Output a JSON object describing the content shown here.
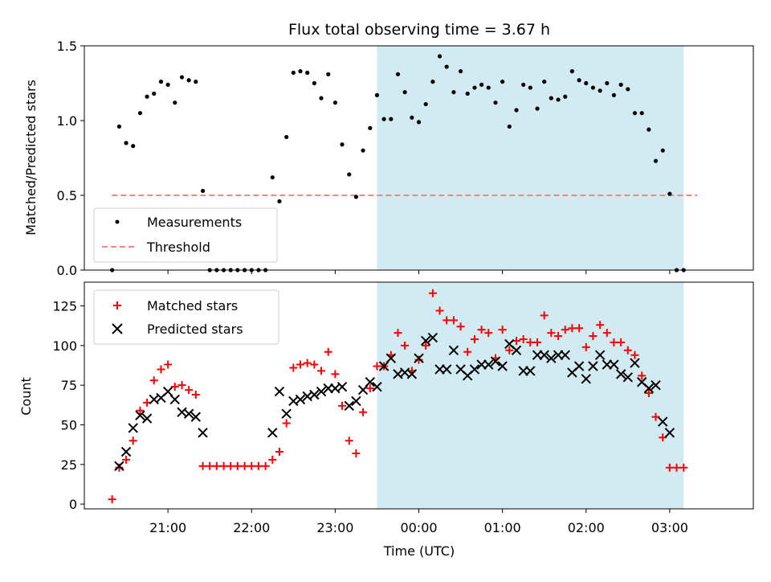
{
  "figure": {
    "title": "Flux total observing time = 3.67 h",
    "xlabel": "Time (UTC)",
    "x_tick_labels": [
      "21:00",
      "22:00",
      "23:00",
      "00:00",
      "01:00",
      "02:00",
      "03:00"
    ],
    "x_tick_hours": [
      21,
      22,
      23,
      24,
      25,
      26,
      27
    ],
    "xlim_hours": [
      20.0,
      28.0
    ],
    "highlight_hours": [
      23.5,
      27.167
    ],
    "highlight_color": "#add8e6"
  },
  "chart_data": [
    {
      "type": "scatter",
      "ylabel": "Matched/Predicted stars",
      "ylim": [
        0,
        1.5
      ],
      "y_ticks": [
        0.0,
        0.5,
        1.0,
        1.5
      ],
      "y_tick_labels": [
        "0.0",
        "0.5",
        "1.0",
        "1.5"
      ],
      "legend": {
        "placement": "lower-left",
        "entries": [
          "Measurements",
          "Threshold"
        ]
      },
      "threshold": {
        "name": "Threshold",
        "value": 0.5,
        "x_range_hours": [
          20.33,
          27.33
        ],
        "color": "#ff8080"
      },
      "series": [
        {
          "name": "Measurements",
          "color": "#000000",
          "points": [
            [
              20.333,
              0.0
            ],
            [
              20.417,
              0.96
            ],
            [
              20.5,
              0.85
            ],
            [
              20.583,
              0.83
            ],
            [
              20.667,
              1.05
            ],
            [
              20.75,
              1.16
            ],
            [
              20.833,
              1.18
            ],
            [
              20.917,
              1.26
            ],
            [
              21.0,
              1.24
            ],
            [
              21.083,
              1.12
            ],
            [
              21.167,
              1.29
            ],
            [
              21.25,
              1.27
            ],
            [
              21.333,
              1.26
            ],
            [
              21.417,
              0.53
            ],
            [
              21.5,
              0.0
            ],
            [
              21.583,
              0.0
            ],
            [
              21.667,
              0.0
            ],
            [
              21.75,
              0.0
            ],
            [
              21.833,
              0.0
            ],
            [
              21.917,
              0.0
            ],
            [
              22.0,
              0.0
            ],
            [
              22.083,
              0.0
            ],
            [
              22.167,
              0.0
            ],
            [
              22.25,
              0.62
            ],
            [
              22.333,
              0.46
            ],
            [
              22.417,
              0.89
            ],
            [
              22.5,
              1.32
            ],
            [
              22.583,
              1.33
            ],
            [
              22.667,
              1.32
            ],
            [
              22.75,
              1.25
            ],
            [
              22.833,
              1.15
            ],
            [
              22.917,
              1.31
            ],
            [
              23.0,
              1.12
            ],
            [
              23.083,
              0.84
            ],
            [
              23.167,
              0.64
            ],
            [
              23.25,
              0.49
            ],
            [
              23.333,
              0.8
            ],
            [
              23.417,
              0.95
            ],
            [
              23.5,
              1.17
            ],
            [
              23.583,
              1.01
            ],
            [
              23.667,
              1.01
            ],
            [
              23.75,
              1.31
            ],
            [
              23.833,
              1.19
            ],
            [
              23.917,
              1.02
            ],
            [
              24.0,
              0.99
            ],
            [
              24.083,
              1.11
            ],
            [
              24.167,
              1.26
            ],
            [
              24.25,
              1.43
            ],
            [
              24.333,
              1.36
            ],
            [
              24.417,
              1.19
            ],
            [
              24.5,
              1.33
            ],
            [
              24.583,
              1.18
            ],
            [
              24.667,
              1.22
            ],
            [
              24.75,
              1.24
            ],
            [
              24.833,
              1.22
            ],
            [
              24.917,
              1.12
            ],
            [
              25.0,
              1.26
            ],
            [
              25.083,
              0.96
            ],
            [
              25.167,
              1.07
            ],
            [
              25.25,
              1.24
            ],
            [
              25.333,
              1.22
            ],
            [
              25.417,
              1.08
            ],
            [
              25.5,
              1.26
            ],
            [
              25.583,
              1.15
            ],
            [
              25.667,
              1.14
            ],
            [
              25.75,
              1.16
            ],
            [
              25.833,
              1.33
            ],
            [
              25.917,
              1.27
            ],
            [
              26.0,
              1.25
            ],
            [
              26.083,
              1.22
            ],
            [
              26.167,
              1.2
            ],
            [
              26.25,
              1.25
            ],
            [
              26.333,
              1.17
            ],
            [
              26.417,
              1.24
            ],
            [
              26.5,
              1.21
            ],
            [
              26.583,
              1.05
            ],
            [
              26.667,
              1.05
            ],
            [
              26.75,
              0.94
            ],
            [
              26.833,
              0.73
            ],
            [
              26.917,
              0.8
            ],
            [
              27.0,
              0.51
            ],
            [
              27.083,
              0.0
            ],
            [
              27.167,
              0.0
            ]
          ]
        }
      ]
    },
    {
      "type": "scatter",
      "ylabel": "Count",
      "ylim": [
        -3,
        140
      ],
      "y_ticks": [
        0,
        25,
        50,
        75,
        100,
        125
      ],
      "y_tick_labels": [
        "0",
        "25",
        "50",
        "75",
        "100",
        "125"
      ],
      "legend": {
        "placement": "upper-left",
        "entries": [
          "Matched stars",
          "Predicted stars"
        ]
      },
      "series": [
        {
          "name": "Matched stars",
          "marker": "plus",
          "color": "#ff0000",
          "points": [
            [
              20.333,
              3
            ],
            [
              20.417,
              23
            ],
            [
              20.5,
              28
            ],
            [
              20.583,
              40
            ],
            [
              20.667,
              59
            ],
            [
              20.75,
              64
            ],
            [
              20.833,
              78
            ],
            [
              20.917,
              85
            ],
            [
              21.0,
              88
            ],
            [
              21.083,
              74
            ],
            [
              21.167,
              75
            ],
            [
              21.25,
              72
            ],
            [
              21.333,
              69
            ],
            [
              21.417,
              24
            ],
            [
              21.5,
              24
            ],
            [
              21.583,
              24
            ],
            [
              21.667,
              24
            ],
            [
              21.75,
              24
            ],
            [
              21.833,
              24
            ],
            [
              21.917,
              24
            ],
            [
              22.0,
              24
            ],
            [
              22.083,
              24
            ],
            [
              22.167,
              24
            ],
            [
              22.25,
              28
            ],
            [
              22.333,
              33
            ],
            [
              22.417,
              51
            ],
            [
              22.5,
              86
            ],
            [
              22.583,
              88
            ],
            [
              22.667,
              89
            ],
            [
              22.75,
              88
            ],
            [
              22.833,
              84
            ],
            [
              22.917,
              96
            ],
            [
              23.0,
              82
            ],
            [
              23.083,
              62
            ],
            [
              23.167,
              40
            ],
            [
              23.25,
              32
            ],
            [
              23.333,
              58
            ],
            [
              23.417,
              73
            ],
            [
              23.5,
              87
            ],
            [
              23.583,
              87
            ],
            [
              23.667,
              94
            ],
            [
              23.75,
              108
            ],
            [
              23.833,
              100
            ],
            [
              23.917,
              84
            ],
            [
              24.0,
              91
            ],
            [
              24.083,
              100
            ],
            [
              24.167,
              133
            ],
            [
              24.25,
              122
            ],
            [
              24.333,
              116
            ],
            [
              24.417,
              116
            ],
            [
              24.5,
              112
            ],
            [
              24.583,
              96
            ],
            [
              24.667,
              104
            ],
            [
              24.75,
              110
            ],
            [
              24.833,
              108
            ],
            [
              24.917,
              92
            ],
            [
              25.0,
              110
            ],
            [
              25.083,
              97
            ],
            [
              25.167,
              103
            ],
            [
              25.25,
              104
            ],
            [
              25.333,
              102
            ],
            [
              25.417,
              102
            ],
            [
              25.5,
              119
            ],
            [
              25.583,
              108
            ],
            [
              25.667,
              106
            ],
            [
              25.75,
              110
            ],
            [
              25.833,
              111
            ],
            [
              25.917,
              111
            ],
            [
              26.0,
              99
            ],
            [
              26.083,
              106
            ],
            [
              26.167,
              113
            ],
            [
              26.25,
              108
            ],
            [
              26.333,
              102
            ],
            [
              26.417,
              102
            ],
            [
              26.5,
              97
            ],
            [
              26.583,
              94
            ],
            [
              26.667,
              81
            ],
            [
              26.75,
              70
            ],
            [
              26.833,
              55
            ],
            [
              26.917,
              42
            ],
            [
              27.0,
              23
            ],
            [
              27.083,
              23
            ],
            [
              27.167,
              23
            ]
          ]
        },
        {
          "name": "Predicted stars",
          "marker": "x",
          "color": "#000000",
          "points": [
            [
              20.417,
              24
            ],
            [
              20.5,
              33
            ],
            [
              20.583,
              48
            ],
            [
              20.667,
              56
            ],
            [
              20.75,
              54
            ],
            [
              20.833,
              66
            ],
            [
              20.917,
              67
            ],
            [
              21.0,
              71
            ],
            [
              21.083,
              66
            ],
            [
              21.167,
              58
            ],
            [
              21.25,
              57
            ],
            [
              21.333,
              55
            ],
            [
              21.417,
              45
            ],
            [
              22.25,
              45
            ],
            [
              22.333,
              71
            ],
            [
              22.417,
              57
            ],
            [
              22.5,
              65
            ],
            [
              22.583,
              66
            ],
            [
              22.667,
              68
            ],
            [
              22.75,
              69
            ],
            [
              22.833,
              71
            ],
            [
              22.917,
              73
            ],
            [
              23.0,
              73
            ],
            [
              23.083,
              74
            ],
            [
              23.167,
              62
            ],
            [
              23.25,
              65
            ],
            [
              23.333,
              72
            ],
            [
              23.417,
              77
            ],
            [
              23.5,
              74
            ],
            [
              23.583,
              87
            ],
            [
              23.667,
              92
            ],
            [
              23.75,
              82
            ],
            [
              23.833,
              83
            ],
            [
              23.917,
              82
            ],
            [
              24.0,
              92
            ],
            [
              24.083,
              103
            ],
            [
              24.167,
              105
            ],
            [
              24.25,
              85
            ],
            [
              24.333,
              85
            ],
            [
              24.417,
              97
            ],
            [
              24.5,
              85
            ],
            [
              24.583,
              81
            ],
            [
              24.667,
              85
            ],
            [
              24.75,
              88
            ],
            [
              24.833,
              88
            ],
            [
              24.917,
              90
            ],
            [
              25.0,
              87
            ],
            [
              25.083,
              101
            ],
            [
              25.167,
              97
            ],
            [
              25.25,
              84
            ],
            [
              25.333,
              84
            ],
            [
              25.417,
              94
            ],
            [
              25.5,
              94
            ],
            [
              25.583,
              92
            ],
            [
              25.667,
              94
            ],
            [
              25.75,
              94
            ],
            [
              25.833,
              83
            ],
            [
              25.917,
              87
            ],
            [
              26.0,
              79
            ],
            [
              26.083,
              87
            ],
            [
              26.167,
              94
            ],
            [
              26.25,
              88
            ],
            [
              26.333,
              88
            ],
            [
              26.417,
              82
            ],
            [
              26.5,
              80
            ],
            [
              26.583,
              89
            ],
            [
              26.667,
              77
            ],
            [
              26.75,
              73
            ],
            [
              26.833,
              75
            ],
            [
              26.917,
              52
            ],
            [
              27.0,
              45
            ]
          ]
        }
      ]
    }
  ]
}
